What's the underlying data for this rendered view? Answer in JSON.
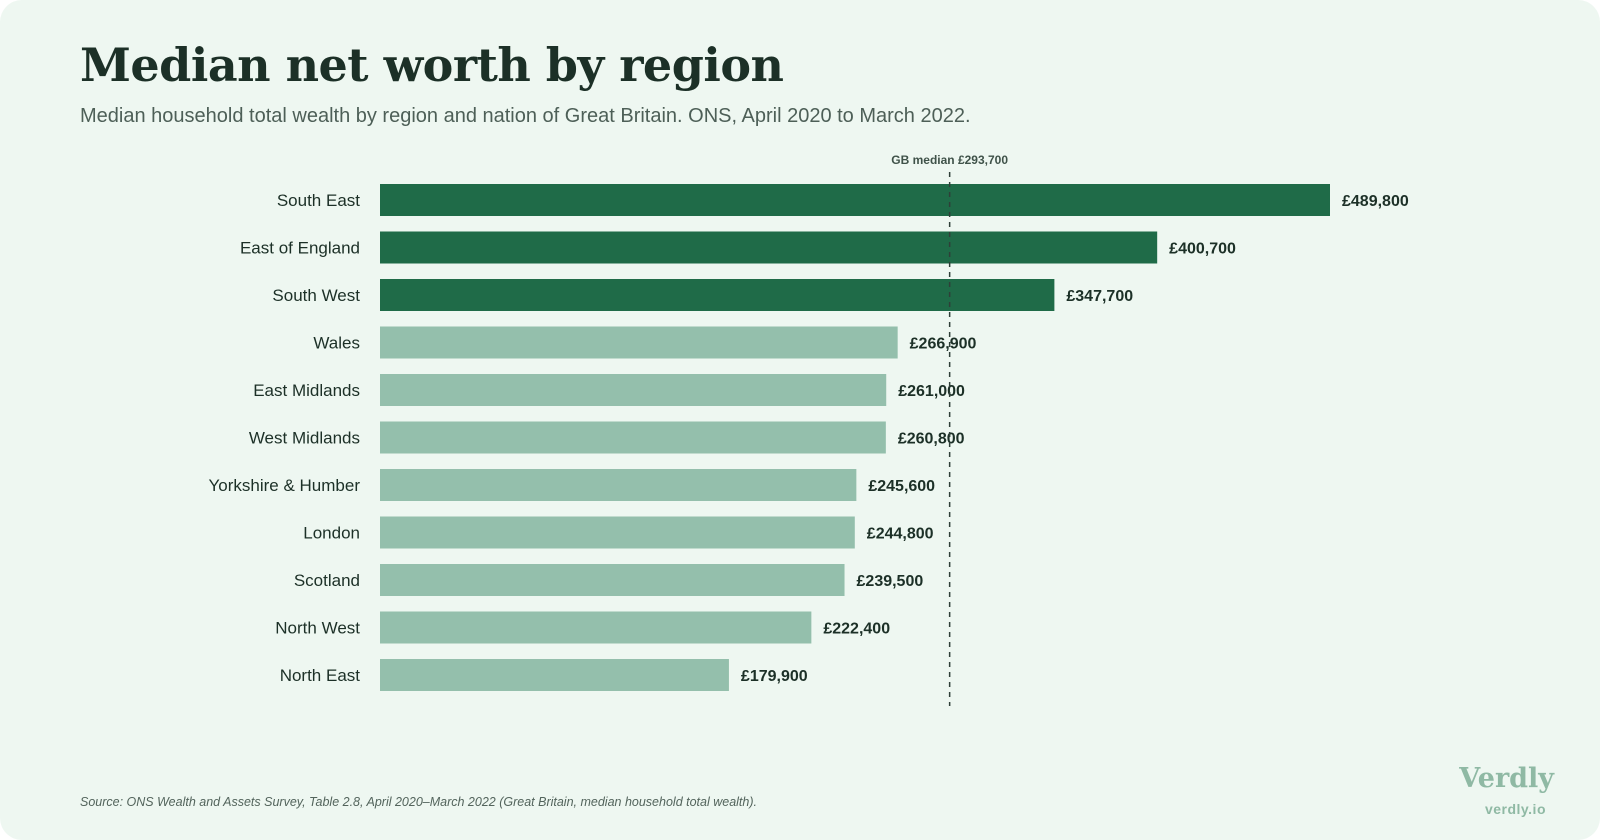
{
  "header": {
    "title": "Median net worth by region",
    "subtitle": "Median household total wealth by region and nation of Great Britain. ONS, April 2020 to March 2022."
  },
  "footer": {
    "source": "Source: ONS Wealth and Assets Survey, Table 2.8, April 2020–March 2022 (Great Britain, median household total wealth).",
    "brand": "Verdly",
    "brand_url": "verdly.io"
  },
  "colors": {
    "background": "#eef7f1",
    "above_median": "#1f6b48",
    "below_median": "#94bfac",
    "text_dark": "#1c3027",
    "reference_line": "#2f3f38"
  },
  "chart_data": {
    "type": "bar",
    "orientation": "horizontal",
    "categories": [
      "South East",
      "East of England",
      "South West",
      "Wales",
      "East Midlands",
      "West Midlands",
      "Yorkshire & Humber",
      "London",
      "Scotland",
      "North West",
      "North East"
    ],
    "values": [
      489800,
      400700,
      347700,
      266900,
      261000,
      260800,
      245600,
      244800,
      239500,
      222400,
      179900
    ],
    "value_labels": [
      "£489,800",
      "£400,700",
      "£347,700",
      "£266,900",
      "£261,000",
      "£260,800",
      "£245,600",
      "£244,800",
      "£239,500",
      "£222,400",
      "£179,900"
    ],
    "reference_line": {
      "value": 293700,
      "label": "GB median £293,700"
    },
    "xlim": [
      0,
      489800
    ],
    "grid": false,
    "legend": "none"
  }
}
